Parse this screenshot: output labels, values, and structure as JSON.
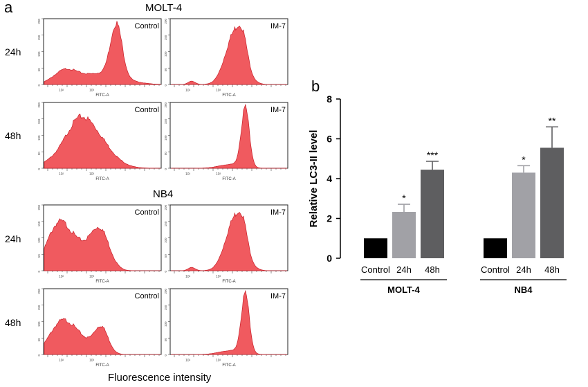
{
  "panel_a": {
    "letter": "a",
    "section_titles": [
      "MOLT-4",
      "NB4"
    ],
    "row_labels": [
      "24h",
      "48h",
      "24h",
      "48h"
    ],
    "axis_tick_labels": [
      "10²",
      "10³"
    ],
    "histogram_xlabel": "FITC-A",
    "y_tick_labels": [
      "0",
      "50",
      "100",
      "150",
      "200"
    ],
    "x_axis_label": "Fluorescence intensity",
    "histogram_color": "#f05a5f",
    "histograms": [
      {
        "cell_line": "MOLT-4",
        "time": "24h",
        "label": "Control",
        "shape": "broad-peak-with-low-shoulder"
      },
      {
        "cell_line": "MOLT-4",
        "time": "24h",
        "label": "IM-7",
        "shape": "single-peak"
      },
      {
        "cell_line": "MOLT-4",
        "time": "48h",
        "label": "Control",
        "shape": "broad-peak"
      },
      {
        "cell_line": "MOLT-4",
        "time": "48h",
        "label": "IM-7",
        "shape": "narrow-tall-peak"
      },
      {
        "cell_line": "NB4",
        "time": "24h",
        "label": "Control",
        "shape": "bimodal"
      },
      {
        "cell_line": "NB4",
        "time": "24h",
        "label": "IM-7",
        "shape": "single-peak"
      },
      {
        "cell_line": "NB4",
        "time": "48h",
        "label": "Control",
        "shape": "bimodal-low"
      },
      {
        "cell_line": "NB4",
        "time": "48h",
        "label": "IM-7",
        "shape": "narrow-tall-peak"
      }
    ]
  },
  "panel_b": {
    "letter": "b"
  },
  "chart_data": {
    "type": "bar",
    "title": "",
    "xlabel": "",
    "ylabel": "Relative LC3-II level",
    "ylim": [
      0,
      8
    ],
    "yticks": [
      "0",
      "2",
      "4",
      "6",
      "8"
    ],
    "grid": false,
    "groups": [
      {
        "name": "MOLT-4",
        "categories": [
          "Control",
          "24h",
          "48h"
        ],
        "values": [
          1.0,
          2.33,
          4.45
        ],
        "errors": [
          0,
          0.38,
          0.42
        ],
        "significance": [
          "",
          "*",
          "***"
        ]
      },
      {
        "name": "NB4",
        "categories": [
          "Control",
          "24h",
          "48h"
        ],
        "values": [
          1.0,
          4.3,
          5.55
        ],
        "errors": [
          0,
          0.35,
          1.05
        ],
        "significance": [
          "",
          "*",
          "**"
        ]
      }
    ],
    "colors": [
      "#000000",
      "#a1a1a6",
      "#5e5e60"
    ]
  }
}
